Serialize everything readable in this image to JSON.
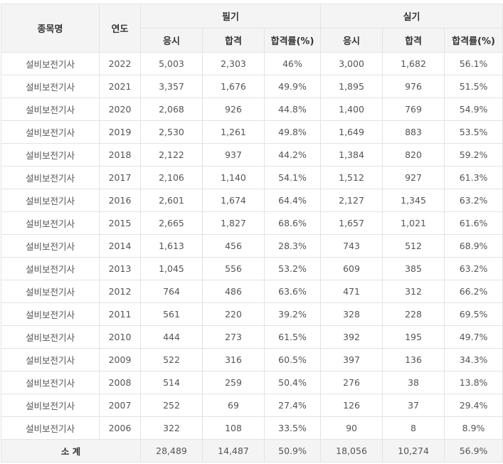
{
  "headers": {
    "item": "종목명",
    "year": "연도",
    "written": "필기",
    "practical": "실기",
    "applicants": "응시",
    "passed": "합격",
    "rate": "합격률(%)"
  },
  "rows": [
    {
      "item": "설비보전기사",
      "year": "2022",
      "w_app": "5,003",
      "w_pass": "2,303",
      "w_rate": "46%",
      "p_app": "3,000",
      "p_pass": "1,682",
      "p_rate": "56.1%"
    },
    {
      "item": "설비보전기사",
      "year": "2021",
      "w_app": "3,357",
      "w_pass": "1,676",
      "w_rate": "49.9%",
      "p_app": "1,895",
      "p_pass": "976",
      "p_rate": "51.5%"
    },
    {
      "item": "설비보전기사",
      "year": "2020",
      "w_app": "2,068",
      "w_pass": "926",
      "w_rate": "44.8%",
      "p_app": "1,400",
      "p_pass": "769",
      "p_rate": "54.9%"
    },
    {
      "item": "설비보전기사",
      "year": "2019",
      "w_app": "2,530",
      "w_pass": "1,261",
      "w_rate": "49.8%",
      "p_app": "1,649",
      "p_pass": "883",
      "p_rate": "53.5%"
    },
    {
      "item": "설비보전기사",
      "year": "2018",
      "w_app": "2,122",
      "w_pass": "937",
      "w_rate": "44.2%",
      "p_app": "1,384",
      "p_pass": "820",
      "p_rate": "59.2%"
    },
    {
      "item": "설비보전기사",
      "year": "2017",
      "w_app": "2,106",
      "w_pass": "1,140",
      "w_rate": "54.1%",
      "p_app": "1,512",
      "p_pass": "927",
      "p_rate": "61.3%"
    },
    {
      "item": "설비보전기사",
      "year": "2016",
      "w_app": "2,601",
      "w_pass": "1,674",
      "w_rate": "64.4%",
      "p_app": "2,127",
      "p_pass": "1,345",
      "p_rate": "63.2%"
    },
    {
      "item": "설비보전기사",
      "year": "2015",
      "w_app": "2,665",
      "w_pass": "1,827",
      "w_rate": "68.6%",
      "p_app": "1,657",
      "p_pass": "1,021",
      "p_rate": "61.6%"
    },
    {
      "item": "설비보전기사",
      "year": "2014",
      "w_app": "1,613",
      "w_pass": "456",
      "w_rate": "28.3%",
      "p_app": "743",
      "p_pass": "512",
      "p_rate": "68.9%"
    },
    {
      "item": "설비보전기사",
      "year": "2013",
      "w_app": "1,045",
      "w_pass": "556",
      "w_rate": "53.2%",
      "p_app": "609",
      "p_pass": "385",
      "p_rate": "63.2%"
    },
    {
      "item": "설비보전기사",
      "year": "2012",
      "w_app": "764",
      "w_pass": "486",
      "w_rate": "63.6%",
      "p_app": "471",
      "p_pass": "312",
      "p_rate": "66.2%"
    },
    {
      "item": "설비보전기사",
      "year": "2011",
      "w_app": "561",
      "w_pass": "220",
      "w_rate": "39.2%",
      "p_app": "328",
      "p_pass": "228",
      "p_rate": "69.5%"
    },
    {
      "item": "설비보전기사",
      "year": "2010",
      "w_app": "444",
      "w_pass": "273",
      "w_rate": "61.5%",
      "p_app": "392",
      "p_pass": "195",
      "p_rate": "49.7%"
    },
    {
      "item": "설비보전기사",
      "year": "2009",
      "w_app": "522",
      "w_pass": "316",
      "w_rate": "60.5%",
      "p_app": "397",
      "p_pass": "136",
      "p_rate": "34.3%"
    },
    {
      "item": "설비보전기사",
      "year": "2008",
      "w_app": "514",
      "w_pass": "259",
      "w_rate": "50.4%",
      "p_app": "276",
      "p_pass": "38",
      "p_rate": "13.8%"
    },
    {
      "item": "설비보전기사",
      "year": "2007",
      "w_app": "252",
      "w_pass": "69",
      "w_rate": "27.4%",
      "p_app": "126",
      "p_pass": "37",
      "p_rate": "29.4%"
    },
    {
      "item": "설비보전기사",
      "year": "2006",
      "w_app": "322",
      "w_pass": "108",
      "w_rate": "33.5%",
      "p_app": "90",
      "p_pass": "8",
      "p_rate": "8.9%"
    }
  ],
  "total": {
    "label": "소 계",
    "w_app": "28,489",
    "w_pass": "14,487",
    "w_rate": "50.9%",
    "p_app": "18,056",
    "p_pass": "10,274",
    "p_rate": "56.9%"
  }
}
